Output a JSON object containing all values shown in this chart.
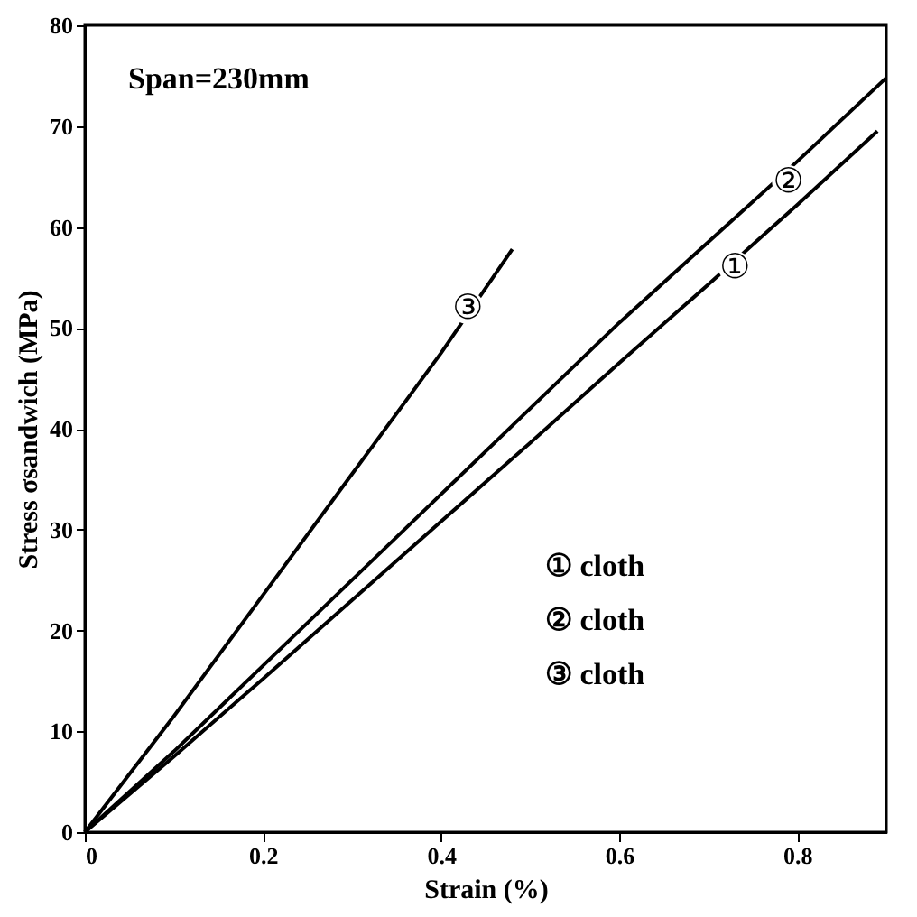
{
  "chart_data": {
    "type": "line",
    "xlabel": "Strain (%)",
    "ylabel": "Stress σsandwich (MPa)",
    "xlim": [
      0,
      0.9
    ],
    "ylim": [
      0,
      80
    ],
    "xticks": [
      0,
      0.2,
      0.4,
      0.6,
      0.8
    ],
    "yticks": [
      0,
      10,
      20,
      30,
      40,
      50,
      60,
      70,
      80
    ],
    "grid": false,
    "line_style": "solid",
    "marker": "none",
    "series": [
      {
        "color": "#000000",
        "x": [
          0,
          0.1,
          0.2,
          0.3,
          0.4,
          0.5,
          0.6,
          0.7,
          0.8,
          0.89
        ],
        "values": [
          0,
          7.5,
          15.2,
          23,
          30.8,
          38.6,
          46.5,
          54.3,
          62.2,
          69.5
        ]
      },
      {
        "color": "#000000",
        "x": [
          0,
          0.1,
          0.2,
          0.3,
          0.4,
          0.5,
          0.6,
          0.7,
          0.8,
          0.9
        ],
        "values": [
          0,
          8,
          16.5,
          25,
          33.5,
          42,
          50.5,
          58.5,
          66.5,
          74.8
        ]
      },
      {
        "color": "#000000",
        "x": [
          0,
          0.1,
          0.2,
          0.3,
          0.4,
          0.48
        ],
        "values": [
          0,
          11.5,
          23.5,
          35.5,
          47.5,
          57.8
        ]
      }
    ],
    "annotations": [
      "Span=230mm",
      "① cloth",
      "② cloth",
      "③ cloth",
      {
        "text": "①",
        "x": 0.73,
        "y": 56
      },
      {
        "text": "②",
        "x": 0.79,
        "y": 64.5
      },
      {
        "text": "③",
        "x": 0.43,
        "y": 52
      }
    ]
  }
}
